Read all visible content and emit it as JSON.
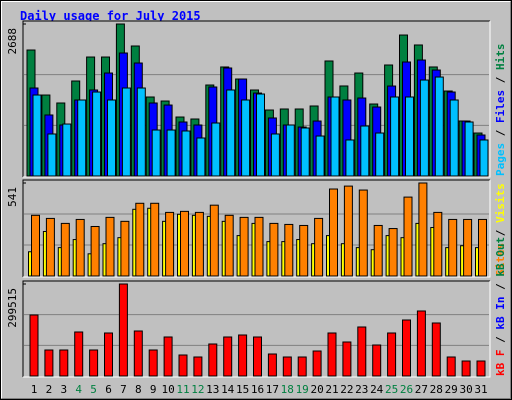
{
  "chart_data": [
    {
      "type": "bar",
      "title": "Daily usage for July 2015",
      "ylim": [
        0,
        2688
      ],
      "yticks": [
        2688
      ],
      "series": [
        {
          "name": "Pages",
          "color": "#00c0ff",
          "values": [
            1432,
            743,
            919,
            1344,
            1485,
            1344,
            1556,
            1556,
            813,
            813,
            796,
            672,
            937,
            1521,
            1344,
            1450,
            743,
            902,
            849,
            707,
            1397,
            637,
            884,
            760,
            1397,
            1397,
            1697,
            1750,
            1344,
            955,
            637
          ]
        },
        {
          "name": "Files",
          "color": "#0000ff",
          "values": [
            1556,
            1079,
            902,
            1344,
            1521,
            1821,
            2175,
            1998,
            1291,
            1255,
            955,
            902,
            1574,
            1910,
            1715,
            1467,
            1026,
            902,
            866,
            972,
            1397,
            1344,
            1379,
            1220,
            1591,
            2016,
            2051,
            1874,
            1485,
            972,
            725
          ]
        },
        {
          "name": "Hits",
          "color": "#008040",
          "values": [
            2228,
            1432,
            1291,
            1680,
            2104,
            2104,
            2688,
            2299,
            1397,
            1326,
            1043,
            1008,
            1609,
            1928,
            1715,
            1521,
            1167,
            1185,
            1185,
            1238,
            2034,
            1592,
            1821,
            1273,
            1963,
            2493,
            2317,
            1928,
            1503,
            973,
            760
          ]
        }
      ]
    },
    {
      "type": "bar",
      "ylim": [
        0,
        541
      ],
      "yticks": [
        541
      ],
      "series": [
        {
          "name": "Sites",
          "color": "#ff8000",
          "values": [
            353,
            335,
            306,
            329,
            288,
            341,
            318,
            423,
            423,
            370,
            376,
            370,
            412,
            353,
            341,
            341,
            306,
            300,
            294,
            335,
            506,
            523,
            500,
            294,
            276,
            459,
            541,
            370,
            329,
            329,
            329
          ]
        },
        {
          "name": "Visits",
          "color": "#ffff00",
          "values": [
            141,
            259,
            165,
            212,
            129,
            188,
            223,
            388,
            394,
            318,
            359,
            353,
            347,
            318,
            235,
            306,
            200,
            200,
            212,
            188,
            235,
            188,
            165,
            153,
            235,
            223,
            306,
            282,
            165,
            176,
            165
          ]
        }
      ]
    },
    {
      "type": "bar",
      "ylim": [
        0,
        299515
      ],
      "yticks": [
        299515
      ],
      "categories": [
        "1",
        "2",
        "3",
        "4",
        "5",
        "6",
        "7",
        "8",
        "9",
        "10",
        "11",
        "12",
        "13",
        "14",
        "15",
        "16",
        "17",
        "18",
        "19",
        "20",
        "21",
        "22",
        "23",
        "24",
        "25",
        "26",
        "27",
        "28",
        "29",
        "30",
        "31"
      ],
      "label_colors": [
        "#000000",
        "#000000",
        "#000000",
        "#008040",
        "#008040",
        "#000000",
        "#000000",
        "#000000",
        "#000000",
        "#000000",
        "#008040",
        "#008040",
        "#000000",
        "#000000",
        "#000000",
        "#000000",
        "#000000",
        "#008040",
        "#008040",
        "#000000",
        "#000000",
        "#000000",
        "#000000",
        "#000000",
        "#008040",
        "#008040",
        "#000000",
        "#000000",
        "#000000",
        "#000000",
        "#000000"
      ],
      "series": [
        {
          "name": "kB F",
          "color": "#ff0000",
          "values": [
            198616,
            84656,
            84656,
            143264,
            84656,
            140008,
            299515,
            146520,
            84656,
            126984,
            68376,
            61864,
            104192,
            126984,
            133496,
            126984,
            71632,
            61864,
            61864,
            81400,
            140008,
            110704,
            159544,
            100936,
            140008,
            182336,
            211640,
            172568,
            61864,
            48840,
            48840
          ]
        }
      ],
      "extra_legend": [
        {
          "name": "kB In",
          "color": "#0000ff"
        },
        {
          "name": "kB Out",
          "color": "#008040"
        }
      ]
    }
  ]
}
